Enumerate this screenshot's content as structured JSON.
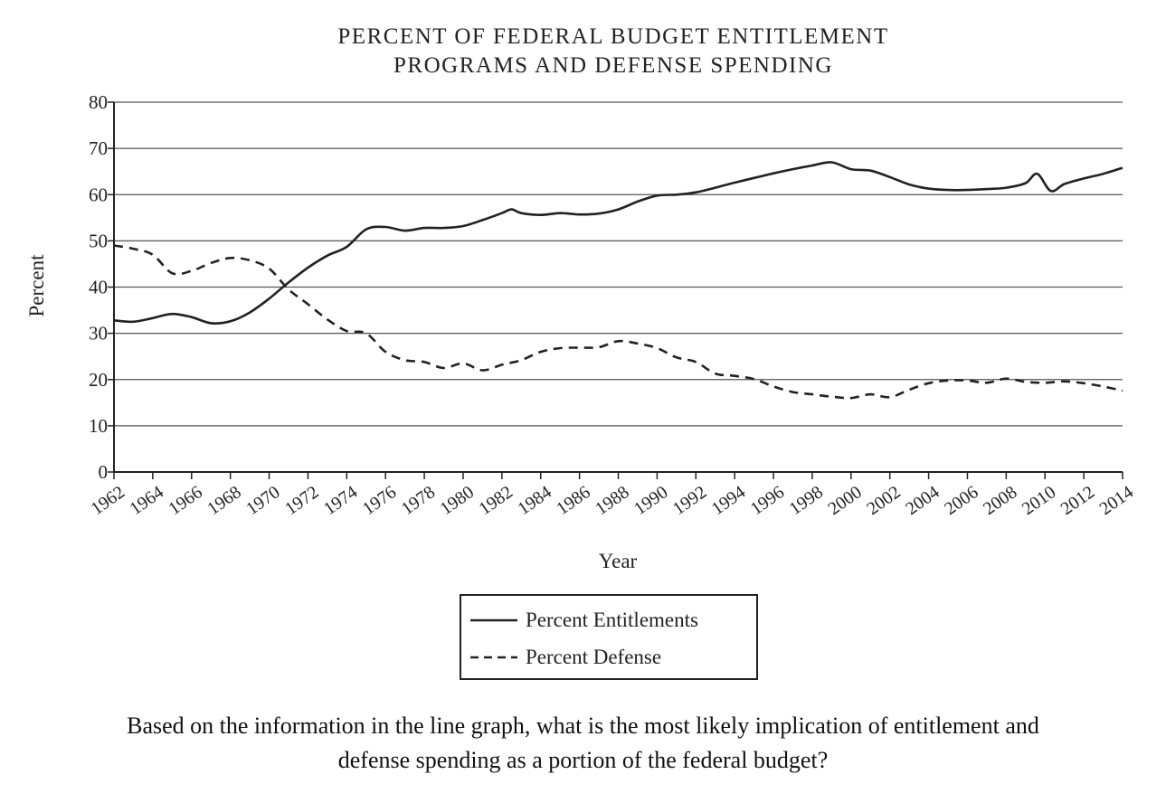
{
  "chart_data": {
    "type": "line",
    "title_lines": [
      "PERCENT OF FEDERAL BUDGET ENTITLEMENT",
      "PROGRAMS AND DEFENSE SPENDING"
    ],
    "xlabel": "Year",
    "ylabel": "Percent",
    "xlim": [
      1962,
      2014
    ],
    "ylim": [
      0,
      80
    ],
    "y_ticks": [
      0,
      10,
      20,
      30,
      40,
      50,
      60,
      70,
      80
    ],
    "x_ticks": [
      "1962",
      "1964",
      "1966",
      "1968",
      "1970",
      "1972",
      "1974",
      "1976",
      "1978",
      "1980",
      "1982",
      "1984",
      "1986",
      "1988",
      "1990",
      "1992",
      "1994",
      "1996",
      "1998",
      "2000",
      "2002",
      "2004",
      "2006",
      "2008",
      "2010",
      "2012",
      "2014"
    ],
    "grid": "horizontal",
    "legend_position": "bottom-center",
    "series": [
      {
        "name": "Percent Entitlements",
        "style": "solid",
        "x": [
          1962,
          1963,
          1964,
          1965,
          1966,
          1967,
          1968,
          1969,
          1970,
          1971,
          1972,
          1973,
          1974,
          1975,
          1976,
          1977,
          1978,
          1979,
          1980,
          1981,
          1982,
          1982.5,
          1983,
          1984,
          1985,
          1986,
          1987,
          1988,
          1989,
          1990,
          1991,
          1992,
          1993,
          1994,
          1995,
          1996,
          1997,
          1998,
          1999,
          2000,
          2001,
          2002,
          2003,
          2004,
          2005,
          2006,
          2007,
          2008,
          2009,
          2009.6,
          2010.3,
          2011,
          2012,
          2013,
          2014
        ],
        "values": [
          32.8,
          32.5,
          33.3,
          34.2,
          33.5,
          32.2,
          32.6,
          34.5,
          37.5,
          41,
          44.2,
          46.8,
          48.7,
          52.5,
          53,
          52.2,
          52.8,
          52.8,
          53.2,
          54.5,
          56,
          56.8,
          56,
          55.6,
          56,
          55.7,
          55.9,
          56.8,
          58.5,
          59.8,
          60,
          60.5,
          61.5,
          62.6,
          63.6,
          64.6,
          65.5,
          66.3,
          67,
          65.5,
          65.2,
          63.8,
          62.2,
          61.3,
          61,
          61,
          61.2,
          61.5,
          62.5,
          64.5,
          60.8,
          62.3,
          63.5,
          64.5,
          65.8
        ]
      },
      {
        "name": "Percent Defense",
        "style": "dashed",
        "x": [
          1962,
          1963,
          1964,
          1965,
          1966,
          1967,
          1968,
          1969,
          1970,
          1971,
          1972,
          1973,
          1974,
          1975,
          1976,
          1977,
          1978,
          1979,
          1980,
          1981,
          1982,
          1983,
          1984,
          1985,
          1986,
          1987,
          1988,
          1989,
          1990,
          1991,
          1992,
          1993,
          1994,
          1995,
          1996,
          1997,
          1998,
          1999,
          2000,
          2001,
          2002,
          2003,
          2004,
          2005,
          2006,
          2007,
          2008,
          2009,
          2010,
          2011,
          2012,
          2013,
          2014
        ],
        "values": [
          49,
          48.3,
          47,
          43,
          43.5,
          45.2,
          46.3,
          45.8,
          44,
          39.5,
          36.3,
          33,
          30.5,
          30,
          26,
          24.2,
          23.8,
          22.5,
          23.5,
          22,
          23.2,
          24.2,
          26,
          26.8,
          26.9,
          27,
          28.3,
          27.8,
          26.8,
          24.8,
          23.8,
          21.3,
          20.8,
          20.1,
          18.5,
          17.3,
          16.8,
          16.3,
          16,
          16.8,
          16.2,
          17.8,
          19.2,
          19.8,
          19.8,
          19.3,
          20.2,
          19.5,
          19.3,
          19.6,
          19.2,
          18.5,
          17.6
        ]
      }
    ]
  },
  "question": {
    "line1": "Based on the information in the line graph, what is the most likely implication of entitlement and",
    "line2": "defense spending as a portion of the federal budget?"
  }
}
